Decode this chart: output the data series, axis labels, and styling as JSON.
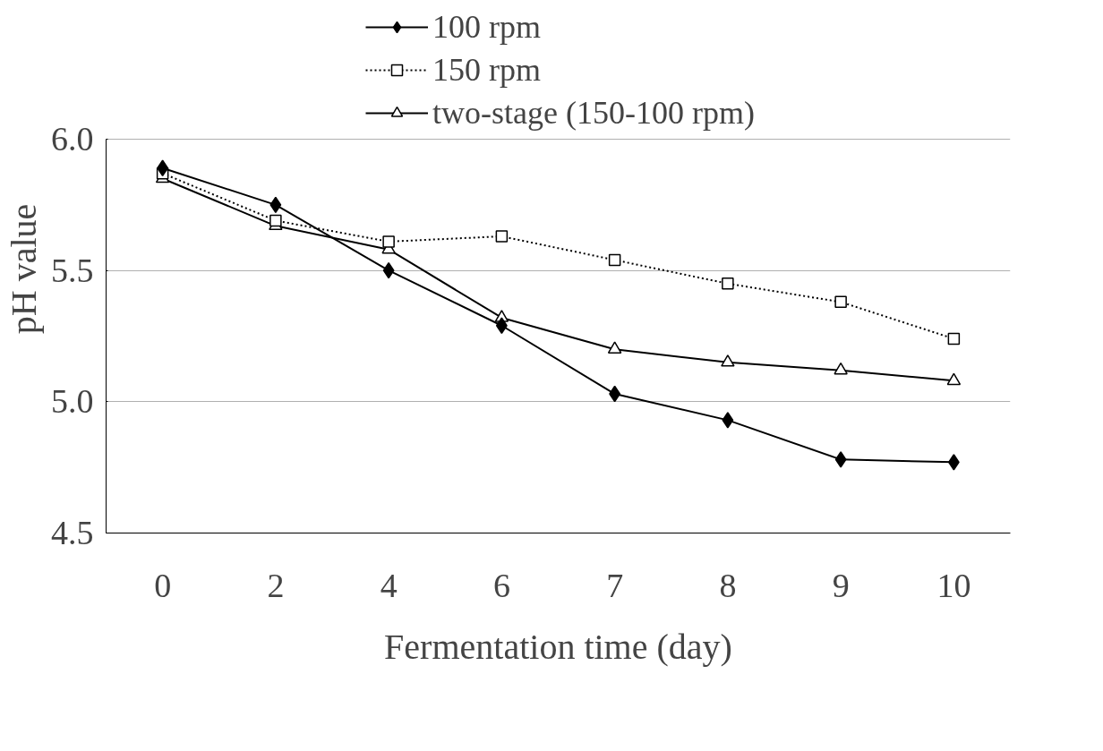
{
  "chart_data": {
    "type": "line",
    "xlabel": "Fermentation time (day)",
    "ylabel": "pH value",
    "categories": [
      "0",
      "2",
      "4",
      "6",
      "7",
      "8",
      "9",
      "10"
    ],
    "ylim": [
      4.5,
      6.0
    ],
    "yticks": [
      4.5,
      {
        "value": 5.0,
        "label": "5.0"
      },
      5.5,
      {
        "value": 6.0,
        "label": "6.0"
      }
    ],
    "grid": "y",
    "legend": "top",
    "series": [
      {
        "name": "100 rpm",
        "color": "#000000",
        "marker": "diamond",
        "line_style": "solid",
        "values": [
          5.89,
          5.75,
          5.5,
          5.29,
          5.03,
          4.93,
          4.78,
          4.77
        ]
      },
      {
        "name": "150 rpm",
        "color": "#000000",
        "marker": "square",
        "line_style": "dotted",
        "values": [
          5.87,
          5.69,
          5.61,
          5.63,
          5.54,
          5.45,
          5.38,
          5.24
        ]
      },
      {
        "name": "two-stage (150-100 rpm)",
        "color": "#000000",
        "marker": "triangle",
        "line_style": "solid",
        "values": [
          5.85,
          5.67,
          5.58,
          5.32,
          5.2,
          5.15,
          5.12,
          5.08
        ]
      }
    ]
  }
}
